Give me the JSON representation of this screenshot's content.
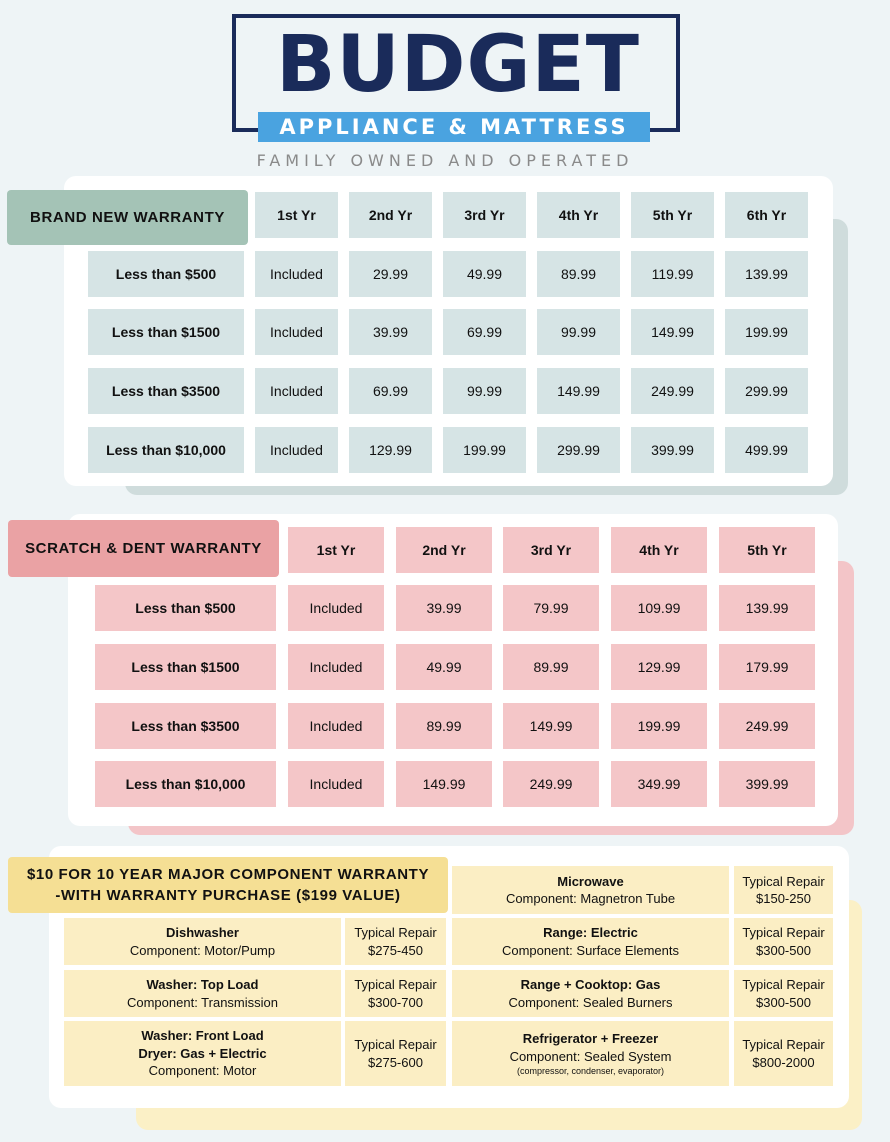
{
  "brand": {
    "name": "BUDGET",
    "subtitle": "APPLIANCE & MATTRESS",
    "tagline": "FAMILY OWNED AND OPERATED"
  },
  "brand_new": {
    "title": "BRAND NEW WARRANTY",
    "headers": [
      "1st Yr",
      "2nd Yr",
      "3rd Yr",
      "4th Yr",
      "5th Yr",
      "6th Yr"
    ],
    "rows": [
      {
        "label": "Less than $500",
        "values": [
          "Included",
          "29.99",
          "49.99",
          "89.99",
          "119.99",
          "139.99"
        ]
      },
      {
        "label": "Less than $1500",
        "values": [
          "Included",
          "39.99",
          "69.99",
          "99.99",
          "149.99",
          "199.99"
        ]
      },
      {
        "label": "Less than $3500",
        "values": [
          "Included",
          "69.99",
          "99.99",
          "149.99",
          "249.99",
          "299.99"
        ]
      },
      {
        "label": "Less than $10,000",
        "values": [
          "Included",
          "129.99",
          "199.99",
          "299.99",
          "399.99",
          "499.99"
        ]
      }
    ]
  },
  "scratch_dent": {
    "title": "SCRATCH & DENT WARRANTY",
    "headers": [
      "1st Yr",
      "2nd Yr",
      "3rd Yr",
      "4th Yr",
      "5th Yr"
    ],
    "rows": [
      {
        "label": "Less than $500",
        "values": [
          "Included",
          "39.99",
          "79.99",
          "109.99",
          "139.99"
        ]
      },
      {
        "label": "Less than $1500",
        "values": [
          "Included",
          "49.99",
          "89.99",
          "129.99",
          "179.99"
        ]
      },
      {
        "label": "Less than $3500",
        "values": [
          "Included",
          "89.99",
          "149.99",
          "199.99",
          "249.99"
        ]
      },
      {
        "label": "Less than $10,000",
        "values": [
          "Included",
          "149.99",
          "249.99",
          "349.99",
          "399.99"
        ]
      }
    ]
  },
  "component": {
    "title_line1": "$10 FOR 10 YEAR MAJOR COMPONENT WARRANTY",
    "title_line2": "-WITH WARRANTY PURCHASE ($199 VALUE)",
    "typical_label": "Typical Repair",
    "items": [
      {
        "name": "Microwave",
        "component": "Component: Magnetron Tube",
        "repair": "$150-250"
      },
      {
        "name": "Dishwasher",
        "component": "Component: Motor/Pump",
        "repair": "$275-450"
      },
      {
        "name": "Range: Electric",
        "component": "Component: Surface Elements",
        "repair": "$300-500"
      },
      {
        "name": "Washer: Top Load",
        "component": "Component: Transmission",
        "repair": "$300-700"
      },
      {
        "name": "Range + Cooktop: Gas",
        "component": "Component: Sealed Burners",
        "repair": "$300-500"
      },
      {
        "name": "Washer: Front Load",
        "name2": "Dryer: Gas + Electric",
        "component": "Component: Motor",
        "repair": "$275-600"
      },
      {
        "name": "Refrigerator + Freezer",
        "component": "Component: Sealed System",
        "note": "(compressor, condenser, evaporator)",
        "repair": "$800-2000"
      }
    ]
  },
  "colors": {
    "navy": "#1a2b5a",
    "sky": "#4aa3e0",
    "sage": "#a4c3b6",
    "rose": "#eaa2a4",
    "butter": "#f5df94"
  }
}
